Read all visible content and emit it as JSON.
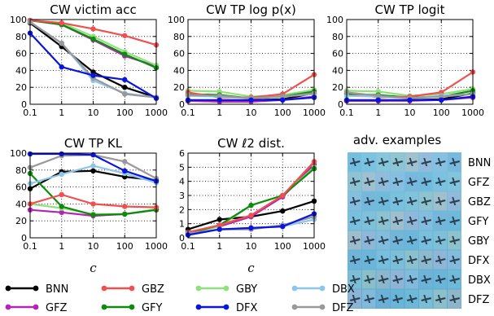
{
  "colors": {
    "BNN": "#000000",
    "GBZ": "#f0504f",
    "GBY": "#8fe27a",
    "DBX": "#8cc6ec",
    "GFZ": "#b424b4",
    "GFY": "#0e8a0e",
    "DFX": "#0a15dc",
    "DFZ": "#999999"
  },
  "chart_data": [
    {
      "id": "victim",
      "type": "line",
      "title": "CW victim acc",
      "x": [
        0.1,
        1,
        10,
        100,
        1000
      ],
      "xticks": [
        "0.1",
        "1",
        "10",
        "100",
        "1000"
      ],
      "xscale": "log",
      "ylim": [
        0,
        100
      ],
      "yticks": [
        0,
        20,
        40,
        60,
        80,
        100
      ],
      "xlabel": "",
      "series": [
        {
          "name": "BNN",
          "values": [
            96,
            68,
            38,
            20,
            8
          ]
        },
        {
          "name": "GFZ",
          "values": [
            99,
            94,
            76,
            57,
            45
          ]
        },
        {
          "name": "GBZ",
          "values": [
            99,
            96,
            89,
            81,
            70
          ]
        },
        {
          "name": "GFY",
          "values": [
            99,
            94,
            77,
            59,
            43
          ]
        },
        {
          "name": "GBY",
          "values": [
            99,
            96,
            80,
            62,
            46
          ]
        },
        {
          "name": "DFX",
          "values": [
            84,
            44,
            34,
            29,
            7
          ]
        },
        {
          "name": "DBX",
          "values": [
            97,
            72,
            28,
            13,
            8
          ]
        },
        {
          "name": "DFZ",
          "values": [
            97,
            72,
            31,
            12,
            8
          ]
        }
      ]
    },
    {
      "id": "tplogp",
      "type": "line",
      "title": "CW TP log p(x)",
      "x": [
        0.1,
        1,
        10,
        100,
        1000
      ],
      "xticks": [
        "0.1",
        "1",
        "10",
        "100",
        "1000"
      ],
      "xscale": "log",
      "ylim": [
        0,
        100
      ],
      "yticks": [
        0,
        20,
        40,
        60,
        80,
        100
      ],
      "xlabel": "",
      "series": [
        {
          "name": "BNN",
          "values": [
            4,
            4,
            5,
            6,
            13
          ]
        },
        {
          "name": "GFZ",
          "values": [
            4,
            3,
            3,
            5,
            9
          ]
        },
        {
          "name": "GBZ",
          "values": [
            14,
            8,
            8,
            12,
            35
          ]
        },
        {
          "name": "GFY",
          "values": [
            12,
            11,
            7,
            9,
            15
          ]
        },
        {
          "name": "GBY",
          "values": [
            16,
            15,
            9,
            11,
            17
          ]
        },
        {
          "name": "DFX",
          "values": [
            5,
            5,
            5,
            5,
            8
          ]
        },
        {
          "name": "DBX",
          "values": [
            10,
            9,
            7,
            9,
            12
          ]
        },
        {
          "name": "DFZ",
          "values": [
            11,
            10,
            7,
            9,
            13
          ]
        }
      ]
    },
    {
      "id": "tplogit",
      "type": "line",
      "title": "CW TP logit",
      "x": [
        0.1,
        1,
        10,
        100,
        1000
      ],
      "xticks": [
        "0.1",
        "1",
        "10",
        "100",
        "1000"
      ],
      "xscale": "log",
      "ylim": [
        0,
        100
      ],
      "yticks": [
        0,
        20,
        40,
        60,
        80,
        100
      ],
      "xlabel": "",
      "series": [
        {
          "name": "BNN",
          "values": [
            4,
            4,
            5,
            6,
            13
          ]
        },
        {
          "name": "GFZ",
          "values": [
            4,
            4,
            4,
            5,
            8
          ]
        },
        {
          "name": "GBZ",
          "values": [
            14,
            8,
            9,
            14,
            38
          ]
        },
        {
          "name": "GFY",
          "values": [
            12,
            11,
            8,
            9,
            16
          ]
        },
        {
          "name": "GBY",
          "values": [
            16,
            15,
            10,
            12,
            18
          ]
        },
        {
          "name": "DFX",
          "values": [
            5,
            5,
            5,
            5,
            9
          ]
        },
        {
          "name": "DBX",
          "values": [
            10,
            9,
            7,
            10,
            12
          ]
        },
        {
          "name": "DFZ",
          "values": [
            14,
            10,
            7,
            9,
            12
          ]
        }
      ]
    },
    {
      "id": "tpkl",
      "type": "line",
      "title": "CW TP KL",
      "x": [
        0.1,
        1,
        10,
        100,
        1000
      ],
      "xticks": [
        "0.1",
        "1",
        "10",
        "100",
        "1000"
      ],
      "xscale": "log",
      "ylim": [
        0,
        100
      ],
      "yticks": [
        0,
        20,
        40,
        60,
        80,
        100
      ],
      "xlabel": "c",
      "series": [
        {
          "name": "BNN",
          "values": [
            58,
            78,
            79,
            72,
            68
          ]
        },
        {
          "name": "GFZ",
          "values": [
            33,
            30,
            26,
            28,
            33
          ]
        },
        {
          "name": "GBZ",
          "values": [
            40,
            51,
            40,
            37,
            36
          ]
        },
        {
          "name": "GFY",
          "values": [
            76,
            37,
            27,
            28,
            33
          ]
        },
        {
          "name": "GBY",
          "values": [
            40,
            35,
            28,
            28,
            34
          ]
        },
        {
          "name": "DFX",
          "values": [
            99,
            99,
            98,
            79,
            67
          ]
        },
        {
          "name": "DBX",
          "values": [
            64,
            75,
            85,
            76,
            65
          ]
        },
        {
          "name": "DFZ",
          "values": [
            83,
            97,
            98,
            90,
            70
          ]
        }
      ]
    },
    {
      "id": "l2",
      "type": "line",
      "title": "CW ℓ2 dist.",
      "x": [
        0.1,
        1,
        10,
        100,
        1000
      ],
      "xticks": [
        "0.1",
        "1",
        "10",
        "100",
        "1000"
      ],
      "xscale": "log",
      "ylim": [
        0,
        6
      ],
      "yticks": [
        0,
        1,
        2,
        3,
        4,
        5,
        6
      ],
      "xlabel": "c",
      "series": [
        {
          "name": "BNN",
          "values": [
            0.6,
            1.3,
            1.5,
            1.9,
            2.6
          ]
        },
        {
          "name": "GFZ",
          "values": [
            0.4,
            0.8,
            1.5,
            2.9,
            5.2
          ]
        },
        {
          "name": "GBZ",
          "values": [
            0.4,
            0.9,
            1.6,
            3.0,
            5.4
          ]
        },
        {
          "name": "GFY",
          "values": [
            0.3,
            0.9,
            2.3,
            3.0,
            4.9
          ]
        },
        {
          "name": "GBY",
          "values": [
            0.3,
            0.8,
            2.3,
            3.0,
            5.0
          ]
        },
        {
          "name": "DFX",
          "values": [
            0.2,
            0.6,
            0.7,
            0.8,
            1.7
          ]
        },
        {
          "name": "DBX",
          "values": [
            0.3,
            0.6,
            0.7,
            0.8,
            1.3
          ]
        },
        {
          "name": "DFZ",
          "values": [
            0.3,
            0.6,
            0.6,
            0.9,
            1.5
          ]
        }
      ]
    }
  ],
  "adv_panel": {
    "title": "adv. examples",
    "rows": [
      "BNN",
      "GFZ",
      "GBZ",
      "GFY",
      "GBY",
      "DFX",
      "DBX",
      "DFZ"
    ]
  },
  "legend": {
    "items": [
      "BNN",
      "GBZ",
      "GBY",
      "DBX",
      "GFZ",
      "GFY",
      "DFX",
      "DFZ"
    ]
  }
}
